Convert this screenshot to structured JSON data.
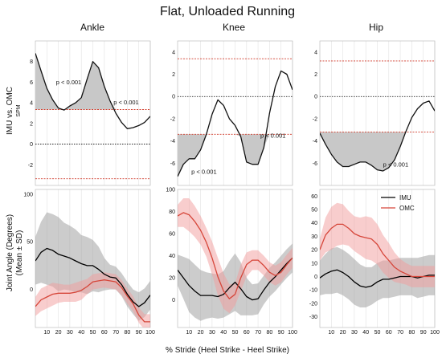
{
  "title": "Flat, Unloaded Running",
  "xlabel": "% Stride (Heel Strike - Heel Strike)",
  "ylabel_top": "IMU vs. OMC",
  "ylabel_top_sub": "SPM",
  "ylabel_bottom": "Joint Angle (Degrees)",
  "ylabel_bottom_sub": "(Mean ± SD)",
  "colors": {
    "imu": "#000000",
    "omc": "#d6463a",
    "imu_band": "#9a9a9a",
    "omc_band": "#f29b9b",
    "threshold": "#d03a2a",
    "spm_fill": "#c8c8c8"
  },
  "legend": {
    "placement": "top-right",
    "items": [
      "IMU",
      "OMC"
    ]
  },
  "chart_data": [
    {
      "type": "line",
      "panel": "spm",
      "title": "Ankle",
      "x": [
        0,
        5,
        10,
        15,
        20,
        25,
        30,
        35,
        40,
        45,
        50,
        55,
        60,
        65,
        70,
        75,
        80,
        85,
        90,
        95,
        100
      ],
      "series": [
        {
          "values": [
            8.8,
            7.1,
            5.4,
            4.3,
            3.5,
            3.3,
            3.7,
            4.0,
            4.5,
            6.3,
            8.0,
            7.4,
            5.6,
            4.2,
            3.0,
            2.1,
            1.5,
            1.6,
            1.8,
            2.1,
            2.7
          ]
        }
      ],
      "thresholds": [
        3.35,
        -3.35
      ],
      "yticks": [
        -2,
        0,
        2,
        4,
        6,
        8
      ],
      "ylim": [
        -4,
        10
      ],
      "annotations": [
        "p < 0.001",
        "p < 0.001"
      ]
    },
    {
      "type": "line",
      "panel": "spm",
      "title": "Knee",
      "x": [
        0,
        5,
        10,
        15,
        20,
        25,
        30,
        35,
        40,
        45,
        50,
        55,
        60,
        65,
        70,
        75,
        80,
        85,
        90,
        95,
        100
      ],
      "series": [
        {
          "values": [
            -7.2,
            -6.1,
            -5.6,
            -5.6,
            -4.8,
            -3.4,
            -1.6,
            -0.3,
            -0.8,
            -2.0,
            -2.6,
            -3.6,
            -5.9,
            -6.1,
            -6.1,
            -4.6,
            -1.5,
            0.9,
            2.3,
            2.0,
            0.6
          ]
        }
      ],
      "thresholds": [
        3.4,
        -3.4
      ],
      "yticks": [
        -6,
        -4,
        -2,
        0,
        2,
        4
      ],
      "ylim": [
        -8,
        5
      ],
      "annotations": [
        "p < 0.001",
        "p < 0.001"
      ]
    },
    {
      "type": "line",
      "panel": "spm",
      "title": "Hip",
      "x": [
        0,
        5,
        10,
        15,
        20,
        25,
        30,
        35,
        40,
        45,
        50,
        55,
        60,
        65,
        70,
        75,
        80,
        85,
        90,
        95,
        100
      ],
      "series": [
        {
          "values": [
            -3.3,
            -4.3,
            -5.2,
            -5.9,
            -6.3,
            -6.3,
            -6.1,
            -5.9,
            -5.9,
            -6.2,
            -6.6,
            -6.7,
            -6.4,
            -5.7,
            -4.5,
            -3.1,
            -1.9,
            -1.1,
            -0.6,
            -0.4,
            -1.3
          ]
        }
      ],
      "thresholds": [
        3.2,
        -3.2
      ],
      "yticks": [
        -6,
        -4,
        -2,
        0,
        2,
        4
      ],
      "ylim": [
        -8,
        5
      ],
      "annotations": [
        "p < 0.001"
      ]
    },
    {
      "type": "line",
      "panel": "angle",
      "x": [
        0,
        5,
        10,
        15,
        20,
        25,
        30,
        35,
        40,
        45,
        50,
        55,
        60,
        65,
        70,
        75,
        80,
        85,
        90,
        95,
        100
      ],
      "series": [
        {
          "name": "IMU",
          "values": [
            30,
            39,
            43,
            41,
            37,
            35,
            33,
            30,
            27,
            25,
            25,
            21,
            16,
            13,
            12,
            5,
            -5,
            -13,
            -18,
            -14,
            -6
          ],
          "sd": [
            25,
            32,
            38,
            38,
            39,
            35,
            34,
            33,
            30,
            30,
            27,
            24,
            17,
            13,
            12,
            12,
            13,
            13,
            15,
            15,
            15
          ]
        },
        {
          "name": "OMC",
          "values": [
            -18,
            -11,
            -8,
            -5,
            -4,
            -4,
            -4,
            -3,
            -1,
            3,
            8,
            9,
            10,
            9,
            8,
            2,
            -7,
            -15,
            -27,
            -34,
            -34
          ],
          "sd": [
            10,
            12,
            12,
            12,
            10,
            9,
            9,
            10,
            10,
            8,
            8,
            8,
            8,
            8,
            8,
            8,
            8,
            8,
            8,
            8,
            8
          ]
        }
      ],
      "xticks": [
        10,
        20,
        30,
        40,
        50,
        60,
        70,
        80,
        90,
        100
      ],
      "xlim": [
        0,
        100
      ],
      "yticks": [
        0,
        50,
        100
      ],
      "ylim": [
        -40,
        105
      ]
    },
    {
      "type": "line",
      "panel": "angle",
      "x": [
        0,
        5,
        10,
        15,
        20,
        25,
        30,
        35,
        40,
        45,
        50,
        55,
        60,
        65,
        70,
        75,
        80,
        85,
        90,
        95,
        100
      ],
      "series": [
        {
          "name": "IMU",
          "values": [
            27,
            20,
            13,
            8,
            4,
            4,
            4,
            3,
            5,
            11,
            16,
            10,
            3,
            0,
            1,
            9,
            16,
            21,
            27,
            33,
            38
          ],
          "sd": [
            14,
            19,
            24,
            24,
            23,
            21,
            20,
            20,
            21,
            24,
            26,
            24,
            17,
            14,
            14,
            13,
            13,
            13,
            13,
            13,
            13
          ]
        },
        {
          "name": "OMC",
          "values": [
            76,
            79,
            77,
            71,
            63,
            52,
            38,
            21,
            8,
            1,
            5,
            20,
            32,
            36,
            36,
            31,
            25,
            22,
            25,
            32,
            38
          ],
          "sd": [
            10,
            13,
            15,
            14,
            13,
            13,
            15,
            17,
            16,
            13,
            10,
            12,
            11,
            9,
            9,
            9,
            9,
            9,
            9,
            9,
            9
          ]
        }
      ],
      "xticks": [
        10,
        20,
        30,
        40,
        50,
        60,
        70,
        80,
        90,
        100
      ],
      "xlim": [
        0,
        100
      ],
      "yticks": [
        0,
        20,
        40,
        60,
        80,
        100
      ],
      "ylim": [
        -25,
        100
      ]
    },
    {
      "type": "line",
      "panel": "angle",
      "x": [
        0,
        5,
        10,
        15,
        20,
        25,
        30,
        35,
        40,
        45,
        50,
        55,
        60,
        65,
        70,
        75,
        80,
        85,
        90,
        95,
        100
      ],
      "series": [
        {
          "name": "IMU",
          "values": [
            -1,
            2,
            4,
            5,
            3,
            0,
            -4,
            -7,
            -8,
            -7,
            -4,
            -2,
            -2,
            -1,
            0,
            0,
            0,
            -1,
            0,
            1,
            1
          ],
          "sd": [
            13,
            15,
            17,
            17,
            17,
            17,
            17,
            16,
            15,
            14,
            14,
            14,
            14,
            14,
            14,
            14,
            14,
            15,
            15,
            15,
            15
          ]
        },
        {
          "name": "OMC",
          "values": [
            20,
            31,
            36,
            39,
            39,
            36,
            32,
            30,
            29,
            28,
            24,
            17,
            12,
            7,
            4,
            2,
            0,
            0,
            0,
            0,
            0
          ],
          "sd": [
            8,
            13,
            16,
            16,
            15,
            13,
            13,
            14,
            16,
            16,
            15,
            14,
            13,
            11,
            9,
            8,
            8,
            8,
            8,
            8,
            8
          ]
        }
      ],
      "xticks": [
        10,
        20,
        30,
        40,
        50,
        60,
        70,
        80,
        90,
        100
      ],
      "xlim": [
        0,
        100
      ],
      "yticks": [
        -30,
        -20,
        -10,
        0,
        10,
        20,
        30,
        40,
        50,
        60
      ],
      "ylim": [
        -38,
        65
      ]
    }
  ]
}
